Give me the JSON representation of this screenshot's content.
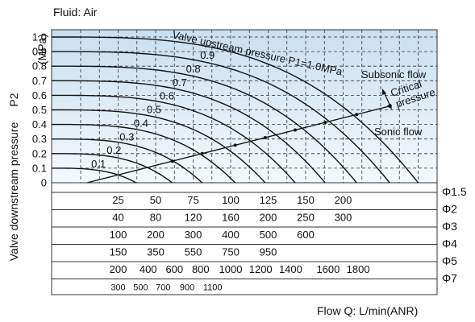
{
  "chart_data": {
    "type": "line",
    "fluid_label": "Fluid: Air",
    "ylabel_main": "Valve downstream pressure",
    "ylabel_var": "P2",
    "ylabel_unit": "(MPa)",
    "xlabel": "Flow Q: L/min(ANR)",
    "ylim": [
      0,
      1.0
    ],
    "yticks": [
      "0",
      "0.1",
      "0.2",
      "0.3",
      "0.4",
      "0.5",
      "0.6",
      "0.7",
      "0.8",
      "0.9",
      "1.0"
    ],
    "grid": true,
    "annotations": {
      "upstream": "Valve upstream pressure P1=1.0MPa",
      "subsonic": "Subsonic flow",
      "critical": "Critical pressure",
      "sonic": "Sonic flow"
    },
    "series": [
      {
        "name": "0.1",
        "p1": 0.1,
        "max_flow": 37
      },
      {
        "name": "0.2",
        "p1": 0.2,
        "max_flow": 61
      },
      {
        "name": "0.3",
        "p1": 0.3,
        "max_flow": 81
      },
      {
        "name": "0.4",
        "p1": 0.4,
        "max_flow": 103
      },
      {
        "name": "0.5",
        "p1": 0.5,
        "max_flow": 123
      },
      {
        "name": "0.6",
        "p1": 0.6,
        "max_flow": 143
      },
      {
        "name": "0.7",
        "p1": 0.7,
        "max_flow": 163
      },
      {
        "name": "0.8",
        "p1": 0.8,
        "max_flow": 184
      },
      {
        "name": "0.9",
        "p1": 0.9,
        "max_flow": 206
      },
      {
        "name": "",
        "p1": 1.0,
        "max_flow": 225
      }
    ],
    "flow_scales": [
      {
        "orifice": "Φ1.5",
        "ticks": [
          25,
          50,
          75,
          100,
          125,
          150,
          200
        ],
        "positions": [
          25,
          50,
          75,
          100,
          125,
          150,
          175
        ]
      },
      {
        "orifice": "Φ2",
        "ticks": [
          40,
          80,
          120,
          160,
          200,
          250,
          300
        ],
        "positions": [
          25,
          50,
          75,
          100,
          125,
          150,
          175
        ]
      },
      {
        "orifice": "Φ3",
        "ticks": [
          100,
          200,
          300,
          400,
          500,
          600
        ],
        "positions": [
          25,
          50,
          75,
          100,
          125,
          150
        ]
      },
      {
        "orifice": "Φ4",
        "ticks": [
          150,
          350,
          550,
          750,
          950
        ],
        "positions": [
          25,
          50,
          75,
          100,
          125
        ]
      },
      {
        "orifice": "Φ5",
        "ticks": [
          200,
          400,
          600,
          800,
          1000,
          1200,
          1400,
          1600,
          1800
        ],
        "positions": [
          25,
          45,
          62.5,
          80,
          100,
          120,
          140,
          165,
          185
        ]
      },
      {
        "orifice": "Φ7",
        "ticks": [
          300,
          500,
          700,
          900,
          1100
        ],
        "positions": [
          25,
          40,
          55,
          71,
          88
        ]
      }
    ]
  }
}
